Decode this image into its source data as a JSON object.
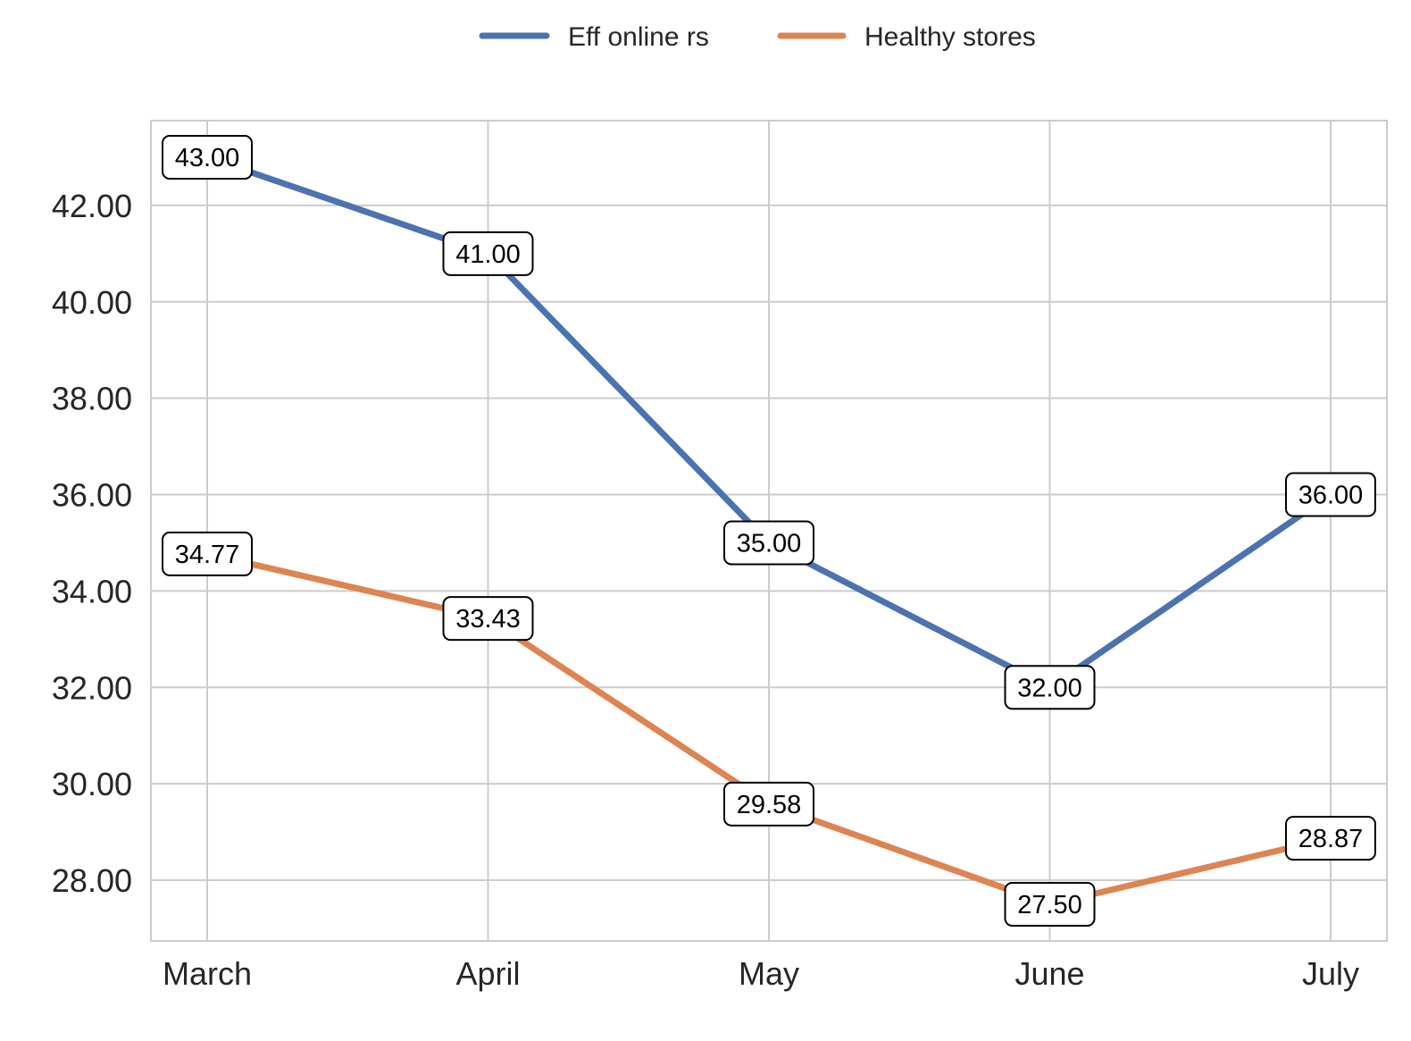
{
  "chart_data": {
    "type": "line",
    "title": "",
    "xlabel": "",
    "ylabel": "",
    "categories": [
      "March",
      "April",
      "May",
      "June",
      "July"
    ],
    "series": [
      {
        "name": "Eff online rs",
        "color": "#4c72b0",
        "values": [
          43.0,
          41.0,
          35.0,
          32.0,
          36.0
        ],
        "labels": [
          "43.00",
          "41.00",
          "35.00",
          "32.00",
          "36.00"
        ]
      },
      {
        "name": "Healthy stores",
        "color": "#dd8452",
        "values": [
          34.77,
          33.43,
          29.58,
          27.5,
          28.87
        ],
        "labels": [
          "34.77",
          "33.43",
          "29.58",
          "27.50",
          "28.87"
        ]
      }
    ],
    "ylim": [
      26.74,
      43.76
    ],
    "yticks": [
      28,
      30,
      32,
      34,
      36,
      38,
      40,
      42
    ],
    "ytick_labels": [
      "28.00",
      "30.00",
      "32.00",
      "34.00",
      "36.00",
      "38.00",
      "40.00",
      "42.00"
    ],
    "grid": true,
    "legend_position": "top-center"
  }
}
